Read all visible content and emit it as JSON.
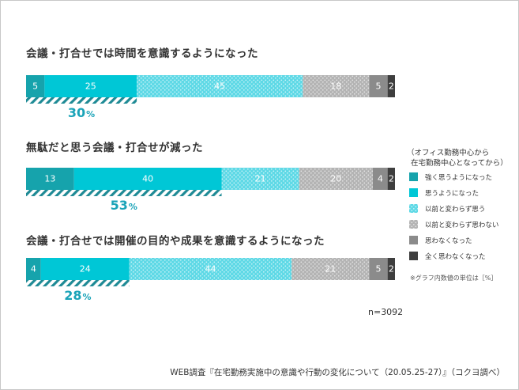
{
  "chart_data": {
    "type": "bar",
    "orientation": "horizontal-stacked-100",
    "questions": [
      {
        "title": "会議・打合せでは時間を意識するようになった",
        "values": [
          5,
          25,
          45,
          18,
          5,
          2
        ],
        "combined_percent": 30,
        "combined_unit": "%"
      },
      {
        "title": "無駄だと思う会議・打合せが減った",
        "values": [
          13,
          40,
          21,
          20,
          4,
          2
        ],
        "combined_percent": 53,
        "combined_unit": "%"
      },
      {
        "title": "会議・打合せでは開催の目的や成果を意識するようになった",
        "values": [
          4,
          24,
          44,
          21,
          5,
          2
        ],
        "combined_percent": 28,
        "combined_unit": "%"
      }
    ],
    "legend": {
      "title_lines": [
        "（オフィス勤務中心から",
        "在宅勤務中心となってから）"
      ],
      "entries": [
        "強く思うようになった",
        "思うようになった",
        "以前と変わらず思う",
        "以前と変わらず思わない",
        "思わなくなった",
        "全く思わなくなった"
      ],
      "placement": "right"
    },
    "series_colors": [
      "#16a3ac",
      "#00c7d6",
      "#5fd9e6",
      "#b4b4b4",
      "#8b8b8b",
      "#3e3e3e"
    ],
    "series_patterns": [
      "solid",
      "solid",
      "dots",
      "dots",
      "solid",
      "solid"
    ],
    "label_colors": [
      "#ffffff",
      "#ffffff",
      "#ffffff",
      "#ffffff",
      "#ffffff",
      "#ffffff"
    ],
    "accent_color": "#1aa3b8",
    "note": "※グラフ内数値の単位は［%］",
    "n_label": "n=3092",
    "source": "WEB調査『在宅勤務実施中の意識や行動の変化について（20.05.25-27）』（コクヨ調べ）"
  }
}
